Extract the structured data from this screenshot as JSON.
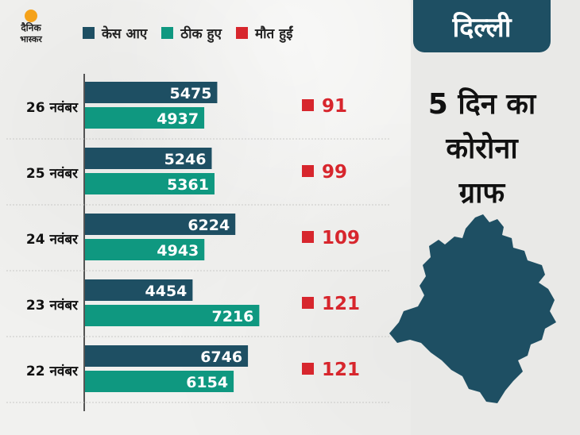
{
  "logo": {
    "line1": "दैनिक",
    "line2": "भास्कर"
  },
  "legend": [
    {
      "label": "केस आए",
      "color": "#1e4f63"
    },
    {
      "label": "ठीक हुए",
      "color": "#0f9880"
    },
    {
      "label": "मौत हुईं",
      "color": "#d7262d"
    }
  ],
  "title_tab": "दिल्ली",
  "headline": [
    "5 दिन का",
    "कोरोना",
    "ग्राफ"
  ],
  "map_icon": "delhi-map-icon",
  "chart_data": {
    "type": "bar",
    "orientation": "horizontal",
    "categories": [
      "26 नवंबर",
      "25 नवंबर",
      "24 नवंबर",
      "23 नवंबर",
      "22 नवंबर"
    ],
    "series": [
      {
        "name": "केस आए",
        "color": "#1e4f63",
        "values": [
          5475,
          5246,
          6224,
          4454,
          6746
        ]
      },
      {
        "name": "ठीक हुए",
        "color": "#0f9880",
        "values": [
          4937,
          5361,
          4943,
          7216,
          6154
        ]
      },
      {
        "name": "मौत हुईं",
        "color": "#d7262d",
        "values": [
          91,
          99,
          109,
          121,
          121
        ]
      }
    ],
    "xlim": [
      0,
      8000
    ],
    "legend": "top"
  }
}
